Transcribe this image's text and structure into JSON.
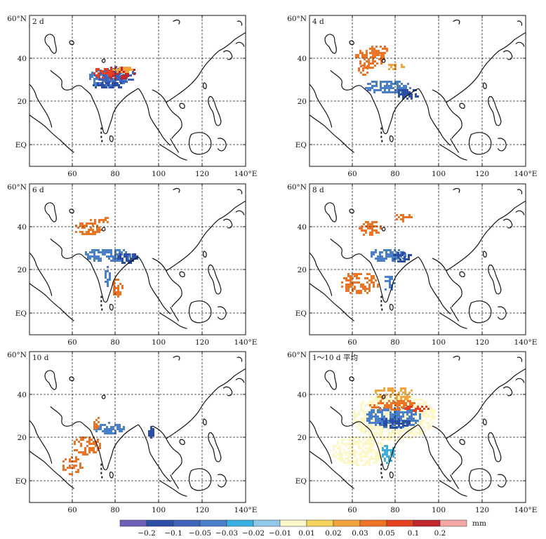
{
  "map": {
    "lat_labels": [
      "60°N",
      "40",
      "20",
      "EQ"
    ],
    "lon_labels": [
      "60",
      "80",
      "100",
      "120",
      "140°E"
    ],
    "grid": true,
    "panels": [
      {
        "label": "2 d"
      },
      {
        "label": "4 d"
      },
      {
        "label": "6 d"
      },
      {
        "label": "8 d"
      },
      {
        "label": "10 d"
      },
      {
        "label": "1～10 d 平均"
      }
    ]
  },
  "legend": {
    "unit": "mm",
    "ticks": [
      "−0.2",
      "−0.1",
      "−0.05",
      "−0.03",
      "−0.02",
      "−0.01",
      "0.01",
      "0.02",
      "0.03",
      "0.05",
      "0.1",
      "0.2"
    ],
    "colors": [
      "#7060b8",
      "#2b4fa6",
      "#3f63b8",
      "#4a7fc9",
      "#3aaee0",
      "#8fc8e8",
      "#fdf7c8",
      "#f6d35a",
      "#f3a33c",
      "#ec7424",
      "#e43f1e",
      "#c1272d",
      "#f4a7a5"
    ]
  }
}
